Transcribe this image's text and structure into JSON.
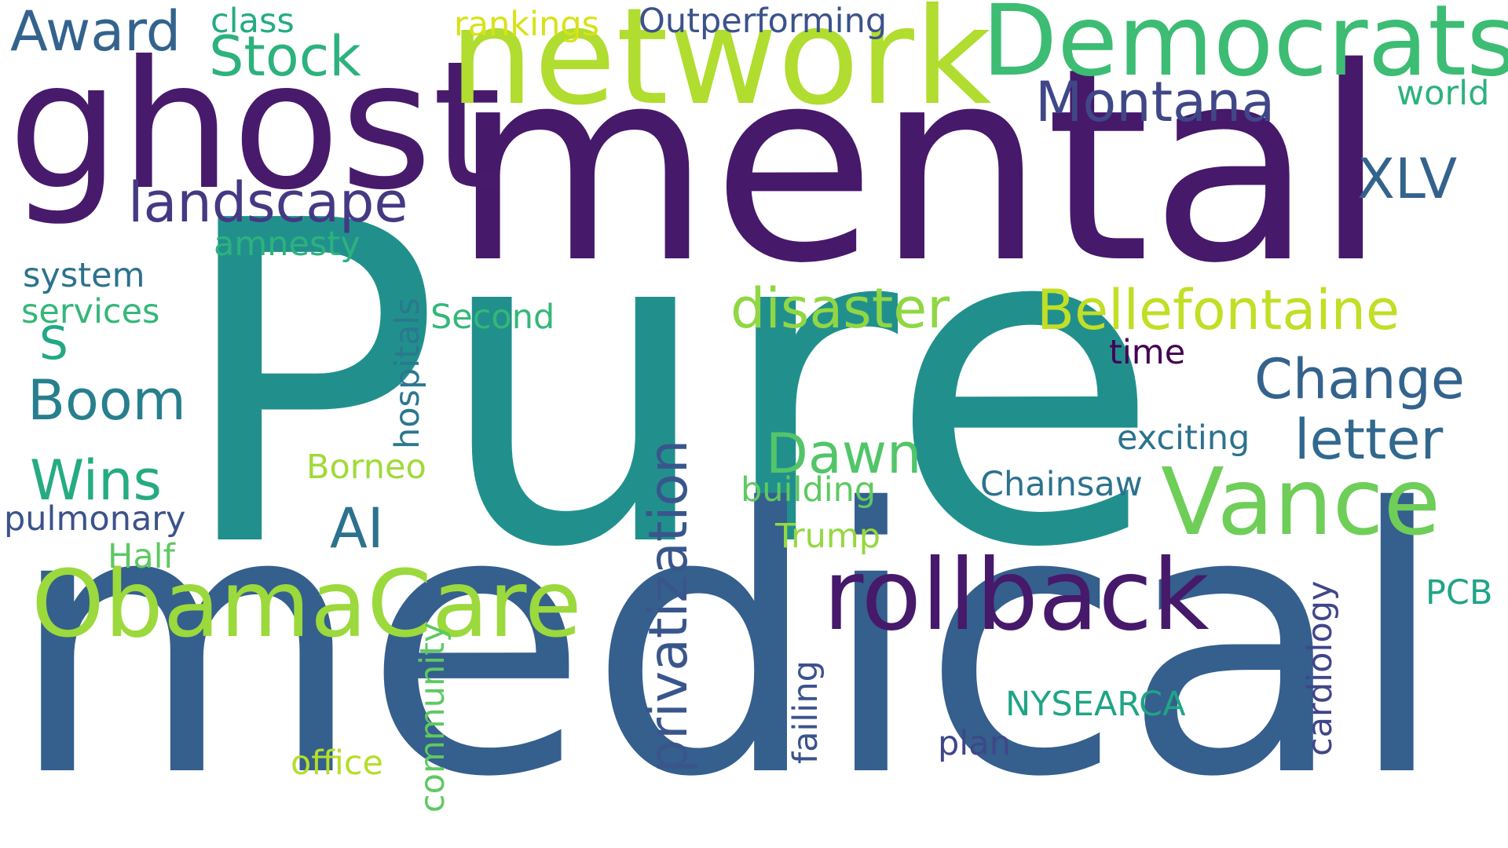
{
  "words": [
    {
      "text": "Pure",
      "color": "#21908d"
    },
    {
      "text": "medical",
      "color": "#355f8d"
    },
    {
      "text": "mental",
      "color": "#46196b"
    },
    {
      "text": "ghost",
      "color": "#481a6c"
    },
    {
      "text": "network",
      "color": "#b0dd2f"
    },
    {
      "text": "Democrats",
      "color": "#3dbc74"
    },
    {
      "text": "rollback",
      "color": "#46196b"
    },
    {
      "text": "ObamaCare",
      "color": "#9bd93c"
    },
    {
      "text": "Vance",
      "color": "#6ece58"
    },
    {
      "text": "privatization",
      "color": "#39568c"
    },
    {
      "text": "Montana",
      "color": "#3f4788"
    },
    {
      "text": "landscape",
      "color": "#443983"
    },
    {
      "text": "Bellefontaine",
      "color": "#c0df25"
    },
    {
      "text": "disaster",
      "color": "#90d743"
    },
    {
      "text": "Award",
      "color": "#33638d"
    },
    {
      "text": "Stock",
      "color": "#2db27d"
    },
    {
      "text": "XLV",
      "color": "#33638d"
    },
    {
      "text": "Change",
      "color": "#33638d"
    },
    {
      "text": "letter",
      "color": "#31688e"
    },
    {
      "text": "Boom",
      "color": "#277f8e"
    },
    {
      "text": "Wins",
      "color": "#25ab82"
    },
    {
      "text": "Dawn",
      "color": "#52c569"
    },
    {
      "text": "AI",
      "color": "#2c728e"
    },
    {
      "text": "S",
      "color": "#22a884"
    },
    {
      "text": "Chainsaw",
      "color": "#2c728e"
    },
    {
      "text": "exciting",
      "color": "#2c728e"
    },
    {
      "text": "building",
      "color": "#5ec962"
    },
    {
      "text": "hospitals",
      "color": "#2a788e"
    },
    {
      "text": "community",
      "color": "#5ec962"
    },
    {
      "text": "failing",
      "color": "#3b528b"
    },
    {
      "text": "cardiology",
      "color": "#404688"
    },
    {
      "text": "NYSEARCA",
      "color": "#20a486"
    },
    {
      "text": "pulmonary",
      "color": "#3b528b"
    },
    {
      "text": "Outperforming",
      "color": "#3b528b"
    },
    {
      "text": "rankings",
      "color": "#d8e219"
    },
    {
      "text": "class",
      "color": "#25ab82"
    },
    {
      "text": "world",
      "color": "#2db27d"
    },
    {
      "text": "amnesty",
      "color": "#2db27d"
    },
    {
      "text": "system",
      "color": "#2c728e"
    },
    {
      "text": "services",
      "color": "#35b779"
    },
    {
      "text": "Second",
      "color": "#35b779"
    },
    {
      "text": "time",
      "color": "#440154"
    },
    {
      "text": "Borneo",
      "color": "#a0da39"
    },
    {
      "text": "Trump",
      "color": "#95d840"
    },
    {
      "text": "Half",
      "color": "#5ec962"
    },
    {
      "text": "PCB",
      "color": "#20a386"
    },
    {
      "text": "plan",
      "color": "#3f4788"
    },
    {
      "text": "office",
      "color": "#b5de2b"
    }
  ]
}
